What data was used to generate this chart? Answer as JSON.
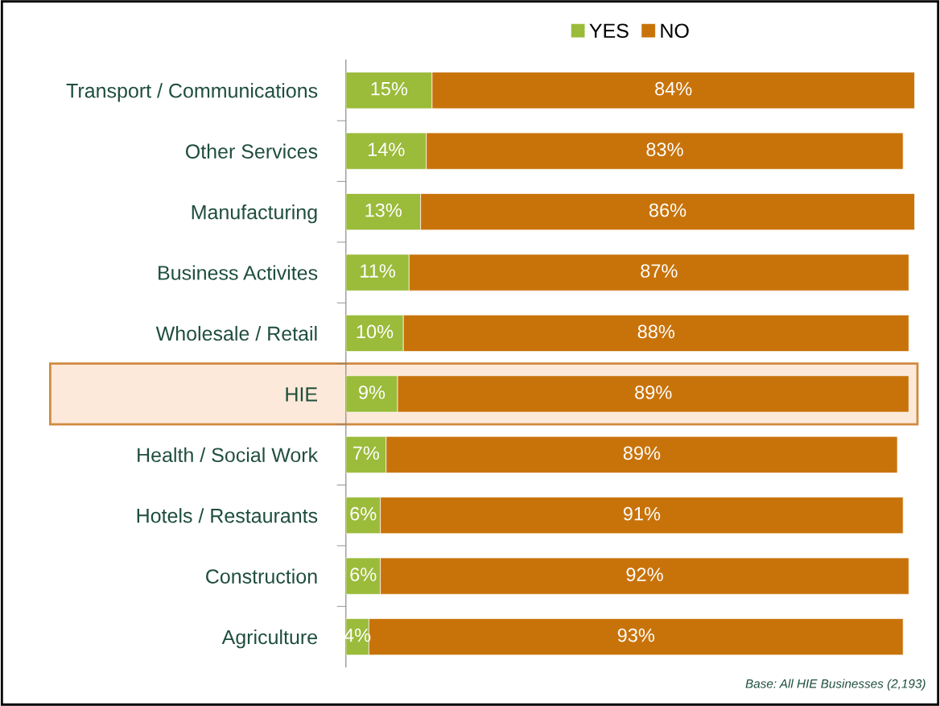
{
  "chart_data": {
    "type": "bar",
    "orientation": "horizontal",
    "stacked": true,
    "legend": "top",
    "grid": false,
    "categories": [
      "Transport / Communications",
      "Other Services",
      "Manufacturing",
      "Business Activites",
      "Wholesale / Retail",
      "HIE",
      "Health / Social Work",
      "Hotels / Restaurants",
      "Construction",
      "Agriculture"
    ],
    "series": [
      {
        "name": "YES",
        "color": "#9bbb3b",
        "values": [
          15,
          14,
          13,
          11,
          10,
          9,
          7,
          6,
          6,
          4
        ],
        "value_labels": [
          "15%",
          "14%",
          "13%",
          "11%",
          "10%",
          "9%",
          "7%",
          "6%",
          "6%",
          "4%"
        ]
      },
      {
        "name": "NO",
        "color": "#c8730a",
        "values": [
          84,
          83,
          86,
          87,
          88,
          89,
          89,
          91,
          92,
          93
        ],
        "value_labels": [
          "84%",
          "83%",
          "86%",
          "87%",
          "88%",
          "89%",
          "89%",
          "91%",
          "92%",
          "93%"
        ]
      }
    ],
    "bands": [
      {
        "axis": "y",
        "from": "HIE",
        "to": "HIE",
        "color": "#fde9d9"
      }
    ],
    "annotations": [
      "Base: All HIE Businesses (2,193)"
    ]
  }
}
